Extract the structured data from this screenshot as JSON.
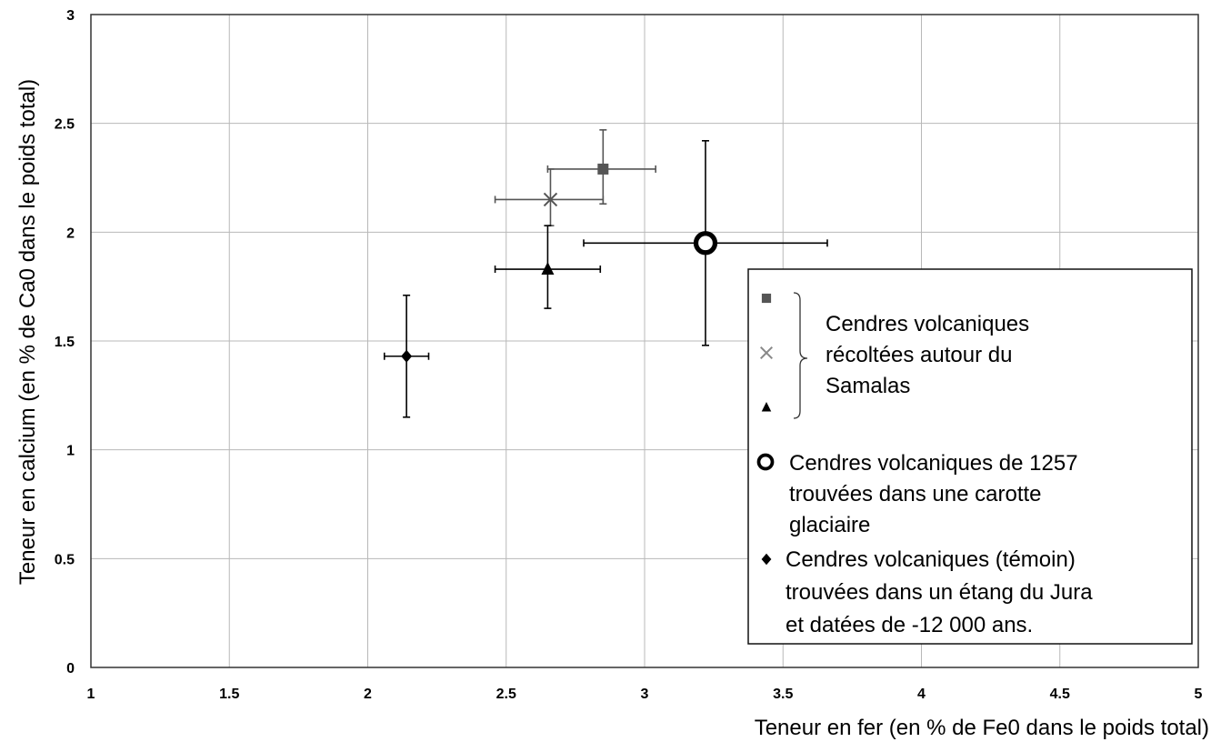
{
  "chart_data": {
    "type": "scatter",
    "xlabel": "Teneur en fer (en % de Fe0 dans le poids total)",
    "ylabel": "Teneur en calcium (en % de Ca0 dans le poids total)",
    "xlim": [
      1,
      5
    ],
    "ylim": [
      0,
      3
    ],
    "x_ticks": [
      "1",
      "1.5",
      "2",
      "2.5",
      "3",
      "3.5",
      "4",
      "4.5",
      "5"
    ],
    "y_ticks": [
      "0",
      "0.5",
      "1",
      "1.5",
      "2",
      "2.5",
      "3"
    ],
    "grid": true,
    "legend_position": "right",
    "series": [
      {
        "marker": "square",
        "color": "#555555",
        "x": 2.85,
        "y": 2.29,
        "x_err": [
          2.65,
          3.04
        ],
        "y_err": [
          2.13,
          2.47
        ]
      },
      {
        "marker": "cross",
        "color": "#555555",
        "x": 2.66,
        "y": 2.15,
        "x_err": [
          2.46,
          2.85
        ],
        "y_err": [
          2.03,
          2.29
        ]
      },
      {
        "marker": "triangle",
        "color": "#000000",
        "x": 2.65,
        "y": 1.83,
        "x_err": [
          2.46,
          2.84
        ],
        "y_err": [
          1.65,
          2.03
        ]
      },
      {
        "marker": "circle-open",
        "color": "#000000",
        "x": 3.22,
        "y": 1.95,
        "x_err": [
          2.78,
          3.66
        ],
        "y_err": [
          1.48,
          2.42
        ]
      },
      {
        "marker": "diamond",
        "color": "#000000",
        "x": 2.14,
        "y": 1.43,
        "x_err": [
          2.06,
          2.22
        ],
        "y_err": [
          1.15,
          1.71
        ]
      }
    ],
    "legend": {
      "group_label": [
        "Cendres volcaniques",
        "récoltées autour du",
        "Samalas"
      ],
      "circle_label": [
        "Cendres volcaniques de 1257",
        "trouvées dans une carotte",
        "glaciaire"
      ],
      "diamond_label": [
        "Cendres volcaniques (témoin)",
        "trouvées dans un étang du Jura",
        "et datées de -12 000 ans."
      ]
    }
  }
}
